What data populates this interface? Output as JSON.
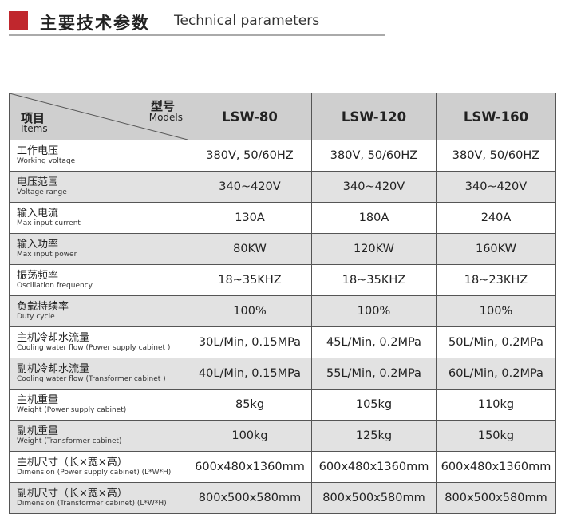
{
  "title": {
    "cn": "主要技术参数",
    "en": "Technical parameters",
    "accent": "#c0272d"
  },
  "corner": {
    "items_cn": "项目",
    "items_en": "Items",
    "models_cn": "型号",
    "models_en": "Models"
  },
  "models": [
    "LSW-80",
    "LSW-120",
    "LSW-160"
  ],
  "rows": [
    {
      "cn": "工作电压",
      "en": "Working voltage",
      "values": [
        "380V, 50/60HZ",
        "380V, 50/60HZ",
        "380V, 50/60HZ"
      ]
    },
    {
      "cn": "电压范围",
      "en": "Voltage range",
      "values": [
        "340~420V",
        "340~420V",
        "340~420V"
      ]
    },
    {
      "cn": "输入电流",
      "en": "Max input current",
      "values": [
        "130A",
        "180A",
        "240A"
      ]
    },
    {
      "cn": "输入功率",
      "en": "Max input power",
      "values": [
        "80KW",
        "120KW",
        "160KW"
      ]
    },
    {
      "cn": "振荡频率",
      "en": "Oscillation frequency",
      "values": [
        "18~35KHZ",
        "18~35KHZ",
        "18~23KHZ"
      ]
    },
    {
      "cn": "负载持续率",
      "en": "Duty cycle",
      "values": [
        "100%",
        "100%",
        "100%"
      ]
    },
    {
      "cn": "主机冷却水流量",
      "en": "Cooling water flow (Power supply cabinet )",
      "values": [
        "30L/Min, 0.15MPa",
        "45L/Min, 0.2MPa",
        "50L/Min, 0.2MPa"
      ]
    },
    {
      "cn": "副机冷却水流量",
      "en": "Cooling water flow (Transformer cabinet )",
      "values": [
        "40L/Min, 0.15MPa",
        "55L/Min, 0.2MPa",
        "60L/Min, 0.2MPa"
      ]
    },
    {
      "cn": "主机重量",
      "en": "Weight (Power supply cabinet)",
      "values": [
        "85kg",
        "105kg",
        "110kg"
      ]
    },
    {
      "cn": "副机重量",
      "en": "Weight (Transformer cabinet)",
      "values": [
        "100kg",
        "125kg",
        "150kg"
      ]
    },
    {
      "cn": "主机尺寸（长×宽×高）",
      "en": "Dimension (Power supply cabinet) (L*W*H)",
      "values": [
        "600x480x1360mm",
        "600x480x1360mm",
        "600x480x1360mm"
      ]
    },
    {
      "cn": "副机尺寸（长×宽×高）",
      "en": "Dimension (Transformer cabinet) (L*W*H)",
      "values": [
        "800x500x580mm",
        "800x500x580mm",
        "800x500x580mm"
      ]
    }
  ]
}
